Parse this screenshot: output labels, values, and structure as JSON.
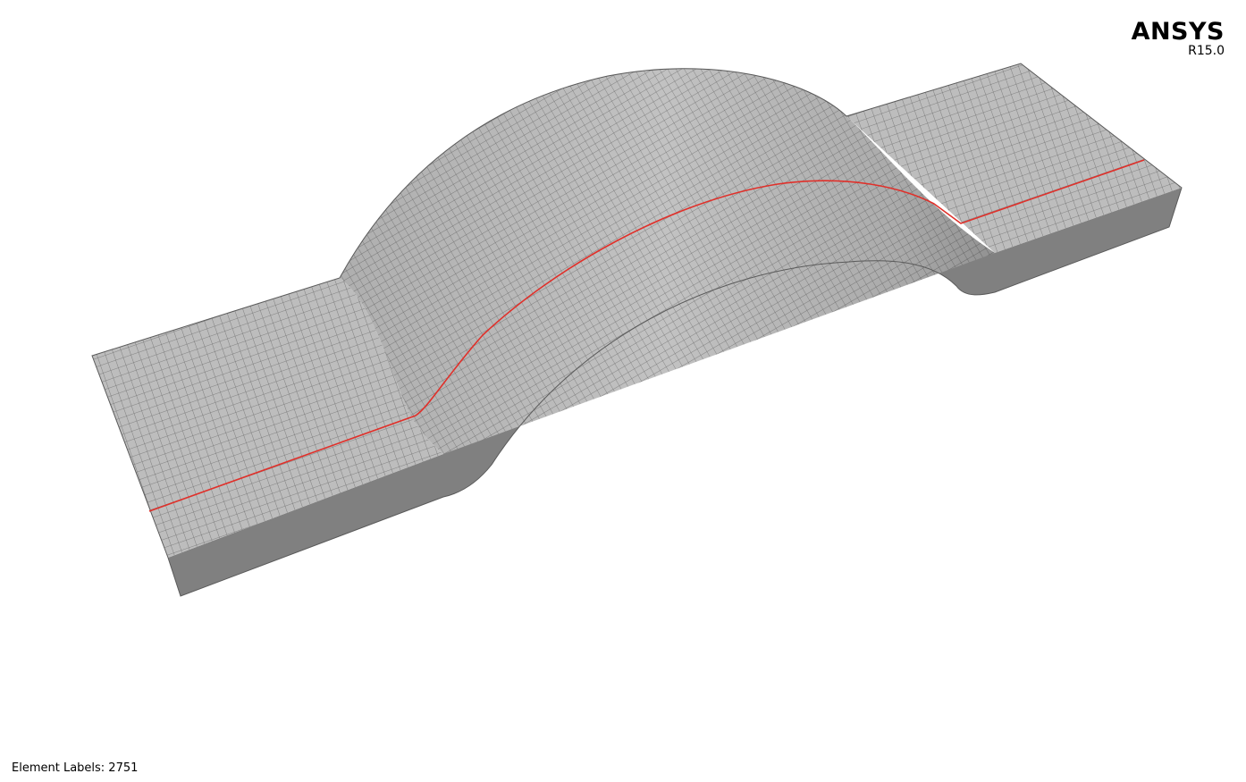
{
  "logo": {
    "name": "ANSYS",
    "version": "R15.0"
  },
  "status": {
    "element_labels": "Element Labels: 2751"
  },
  "colors": {
    "background": "#ffffff",
    "mesh_face": "#bdbdbd",
    "side_face": "#808080",
    "mesh_lines": "#6e6e6e",
    "highlight_path": "#e0302a"
  }
}
